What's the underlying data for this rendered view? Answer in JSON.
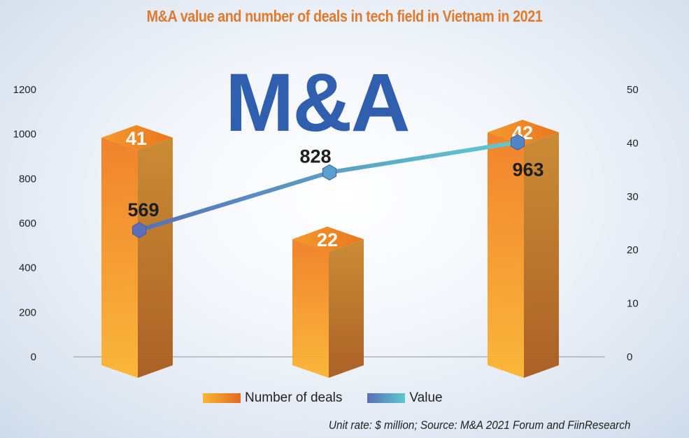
{
  "title": "M&A value and number of deals in tech field in Vietnam in 2021",
  "brand_text": "M&A",
  "source": "Unit rate: $ million; Source: M&A 2021 Forum and FiinResearch",
  "chart_data": {
    "type": "bar+line",
    "title": "M&A value and number of deals in tech field in Vietnam in 2021",
    "categories": [
      "",
      "",
      ""
    ],
    "series": [
      {
        "name": "Number of deals",
        "type": "bar",
        "axis": "right",
        "values": [
          41,
          22,
          42
        ],
        "color": "#f08a24"
      },
      {
        "name": "Value",
        "type": "line",
        "axis": "left",
        "values": [
          569,
          828,
          963
        ],
        "color": "#4fb3c9"
      }
    ],
    "left_axis": {
      "ylim": [
        0,
        1200
      ],
      "ticks": [
        "0",
        "200",
        "400",
        "600",
        "800",
        "1000",
        "1200"
      ]
    },
    "right_axis": {
      "ylim": [
        0,
        50
      ],
      "ticks": [
        "0",
        "10",
        "20",
        "30",
        "40",
        "50"
      ]
    },
    "legend": {
      "position": "bottom",
      "items": [
        "Number of deals",
        "Value"
      ]
    },
    "grid": false
  }
}
